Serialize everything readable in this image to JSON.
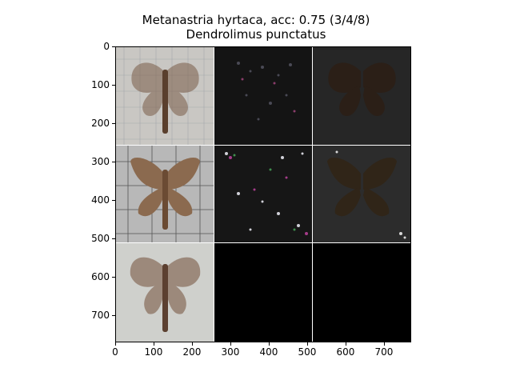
{
  "title_line1": "Metanastria hyrtaca, acc: 0.75 (3/4/8)",
  "title_line2": "Dendrolimus punctatus",
  "y_ticks": [
    "0",
    "100",
    "200",
    "300",
    "400",
    "500",
    "600",
    "700"
  ],
  "x_ticks": [
    "0",
    "100",
    "200",
    "300",
    "400",
    "500",
    "600",
    "700"
  ],
  "colors": {
    "background": "#ffffff",
    "empty_cell": "#000000",
    "grid_line": "#ffffff"
  }
}
